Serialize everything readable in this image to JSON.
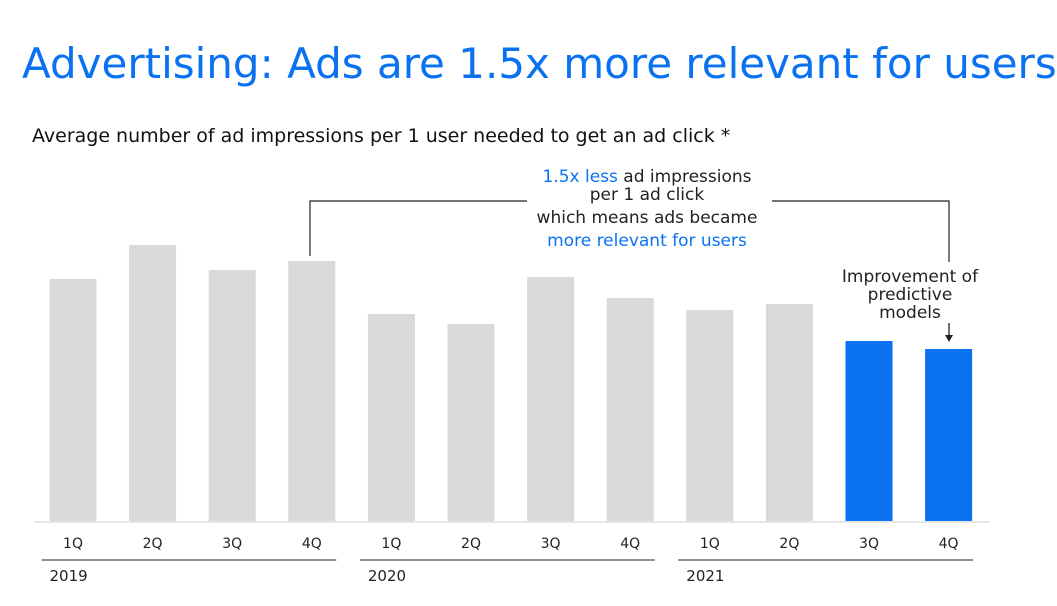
{
  "title": "Advertising: Ads are 1.5x more relevant for users",
  "subtitle": "Average number of ad impressions per 1 user needed to get an ad click *",
  "colors": {
    "title": "#0a72f0",
    "accent": "#0a72f0",
    "bar_default": "#d9d9d9",
    "bar_highlight": "#0a72f0",
    "text": "#111111"
  },
  "annotations": {
    "callout": {
      "line1_highlight": "1.5x less",
      "line1_rest": "ad impressions",
      "line2": "per 1 ad click",
      "line3": "which means ads became",
      "line4_highlight": "more relevant for users"
    },
    "improvement": {
      "line1": "Improvement of",
      "line2": "predictive",
      "line3": "models"
    }
  },
  "chart_data": {
    "type": "bar",
    "categories": [
      "1Q",
      "2Q",
      "3Q",
      "4Q",
      "1Q",
      "2Q",
      "3Q",
      "4Q",
      "1Q",
      "2Q",
      "3Q",
      "4Q"
    ],
    "years": [
      {
        "label": "2019",
        "count": 4
      },
      {
        "label": "2020",
        "count": 4
      },
      {
        "label": "2021",
        "count": 4
      }
    ],
    "series": [
      {
        "values": [
          243,
          277,
          252,
          261,
          208,
          198,
          245,
          224,
          212,
          218,
          181,
          173
        ],
        "highlight": [
          false,
          false,
          false,
          false,
          false,
          false,
          false,
          false,
          false,
          false,
          true,
          true
        ]
      }
    ],
    "ylim": [
      0,
      300
    ],
    "grid": false,
    "xlabel": "",
    "ylabel": ""
  }
}
